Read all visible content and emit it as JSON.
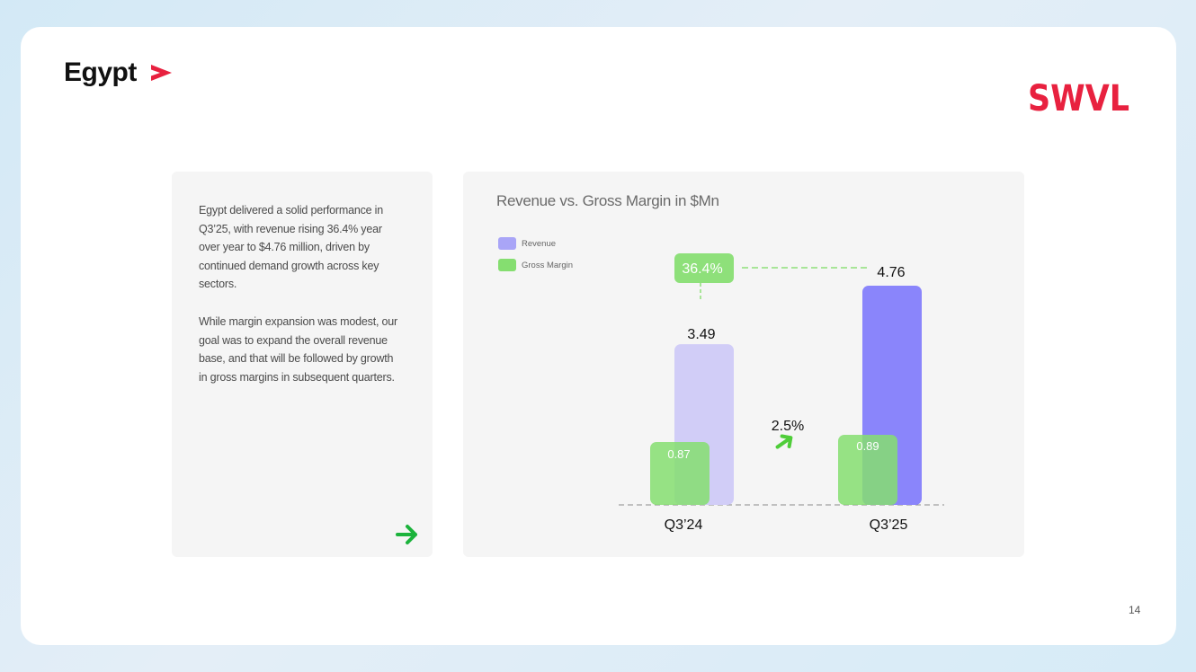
{
  "page": {
    "title": "Egypt",
    "brand": "SWVL",
    "page_number": "14"
  },
  "text_card": {
    "paragraph1": "Egypt delivered a solid performance in Q3’25, with revenue rising 36.4% year over year to $4.76 million, driven by continued demand growth across key sectors.",
    "paragraph2": "While margin expansion was modest, our goal was to expand the overall revenue base, and that will be followed by growth in gross margins in subsequent quarters."
  },
  "colors": {
    "brand_red": "#e8213f",
    "revenue": "#8a85fb",
    "revenue_light": "#d1cdf7",
    "gross_margin": "#85de70",
    "gross_margin_badge": "#8ee07a",
    "arrow_green": "#1cb33c"
  },
  "chart_data": {
    "type": "bar",
    "title": "Revenue vs. Gross Margin in $Mn",
    "categories": [
      "Q3’24",
      "Q3’25"
    ],
    "series": [
      {
        "name": "Revenue",
        "values": [
          3.49,
          4.76
        ]
      },
      {
        "name": "Gross Margin",
        "values": [
          0.87,
          0.89
        ]
      }
    ],
    "value_labels": {
      "revenue": [
        "3.49",
        "4.76"
      ],
      "gross_margin": [
        "0.87",
        "0.89"
      ]
    },
    "annotations": {
      "revenue_growth": "36.4%",
      "gross_margin_growth": "2.5%"
    },
    "ylim": [
      0,
      4.76
    ],
    "xlabel": "",
    "ylabel": "",
    "grid": false,
    "legend": "top-left"
  }
}
